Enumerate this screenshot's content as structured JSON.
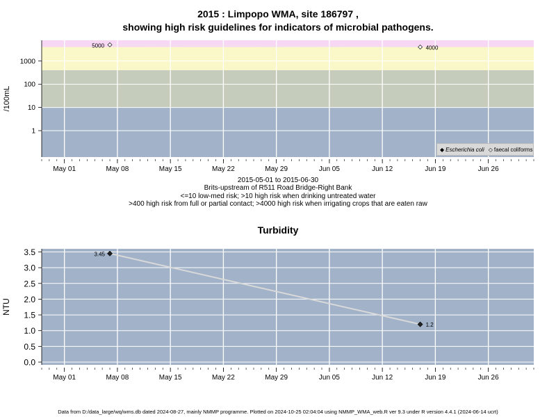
{
  "header": {
    "title_line1": "2015 : Limpopo WMA, site 186797 ,",
    "title_line2": "showing high risk guidelines for indicators of microbial pathogens."
  },
  "notes": {
    "date_range": "2015-05-01 to 2015-06-30",
    "site_name": "Brits-upstream of R511 Road Bridge-Right Bank",
    "risk_line1": "<=10 low-med risk; >10 high risk when drinking untreated water",
    "risk_line2": ">400 high risk from full or partial contact; >4000 high risk when irrigating crops that are eaten raw"
  },
  "footer": {
    "text": "Data from D:/data_large/wq/wms.db dated 2024-08-27, mainly NMMP programme. Plotted on 2024-10-25 02:04:04 using NMMP_WMA_web.R ver 9.3 under R version 4.4.1 (2024-06-14 ucrt)"
  },
  "colors": {
    "band_low": "#a2b3c9",
    "band_med": "#c5ccbc",
    "band_high": "#faf8c8",
    "band_top": "#f7d7f4",
    "turbidity_bg": "#a2b3c9",
    "grid": "#ffffff",
    "line": "#d9d9d9"
  },
  "chart_data": [
    {
      "type": "scatter",
      "title": "",
      "xlabel": "",
      "ylabel": "/100mL",
      "y_scale": "log",
      "yticks": [
        "1",
        "10",
        "100",
        "1000"
      ],
      "x_ticks": [
        "May 01",
        "May 08",
        "May 15",
        "May 22",
        "May 29",
        "Jun 05",
        "Jun 12",
        "Jun 19",
        "Jun 26"
      ],
      "x_range": [
        "2015-04-28",
        "2015-07-02"
      ],
      "ylim": [
        0.1,
        8000
      ],
      "risk_thresholds": [
        10,
        400,
        4000
      ],
      "series": [
        {
          "name": "faecal coliforms",
          "marker": "open-diamond",
          "points": [
            {
              "x": "2015-05-07",
              "y": 5000,
              "label": "5000"
            },
            {
              "x": "2015-06-17",
              "y": 4000,
              "label": "4000"
            }
          ]
        }
      ],
      "legend": {
        "placement": "bottom-right",
        "entries": [
          "Escherichia coli",
          "faecal coliforms"
        ],
        "markers": [
          "◆",
          "◇"
        ]
      },
      "grid": true
    },
    {
      "type": "line",
      "title": "Turbidity",
      "xlabel": "",
      "ylabel": "NTU",
      "ylim": [
        -0.1,
        3.6
      ],
      "yticks": [
        "0.0",
        "0.5",
        "1.0",
        "1.5",
        "2.0",
        "2.5",
        "3.0",
        "3.5"
      ],
      "x_ticks": [
        "May 01",
        "May 08",
        "May 15",
        "May 22",
        "May 29",
        "Jun 05",
        "Jun 12",
        "Jun 19",
        "Jun 26"
      ],
      "x_range": [
        "2015-04-28",
        "2015-07-02"
      ],
      "series": [
        {
          "name": "",
          "points": [
            {
              "x": "2015-05-07",
              "y": 3.45,
              "label": "3.45"
            },
            {
              "x": "2015-06-17",
              "y": 1.2,
              "label": "1.2"
            }
          ]
        }
      ],
      "grid": true
    }
  ]
}
